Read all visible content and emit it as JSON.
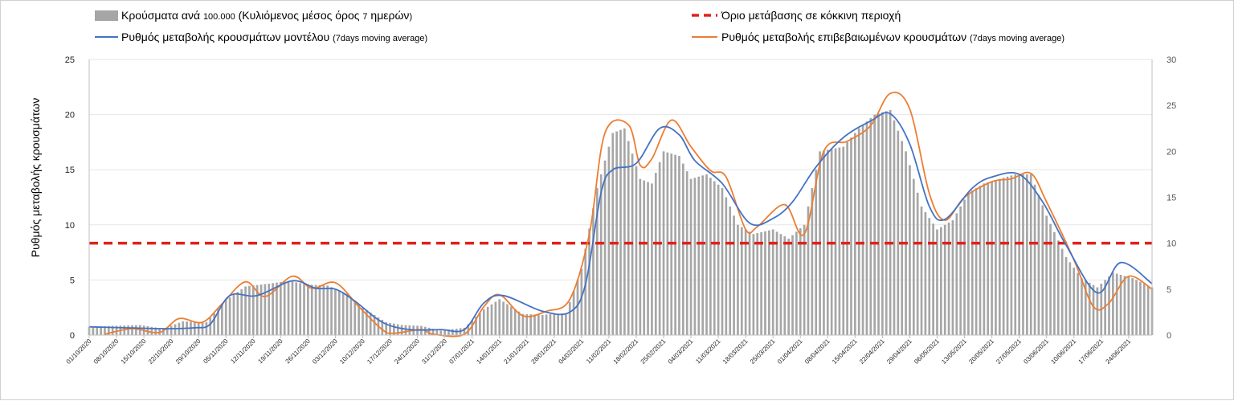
{
  "chart_data": {
    "type": "bar+line",
    "ylabel": "Ρυθμός μεταβολής κρουσμάτων",
    "ylim": [
      0,
      25
    ],
    "y_ticks": [
      "0",
      "5",
      "10",
      "15",
      "20",
      "25"
    ],
    "y2lim": [
      0,
      30
    ],
    "y2_ticks": [
      "0",
      "5",
      "10",
      "15",
      "20",
      "25",
      "30"
    ],
    "x_start": "2020-10-01",
    "x_end": "2021-06-30",
    "x_ticks": [
      "01/10/2020",
      "08/10/2020",
      "15/10/2020",
      "22/10/2020",
      "29/10/2020",
      "05/11/2020",
      "12/11/2020",
      "19/11/2020",
      "26/11/2020",
      "03/12/2020",
      "10/12/2020",
      "17/12/2020",
      "24/12/2020",
      "31/12/2020",
      "07/01/2021",
      "14/01/2021",
      "21/01/2021",
      "28/01/2021",
      "04/02/2021",
      "11/02/2021",
      "18/02/2021",
      "25/02/2021",
      "04/03/2021",
      "11/03/2021",
      "18/03/2021",
      "25/03/2021",
      "01/04/2021",
      "08/04/2021",
      "15/04/2021",
      "22/04/2021",
      "29/04/2021",
      "06/05/2021",
      "13/05/2021",
      "20/05/2021",
      "27/05/2021",
      "03/06/2021",
      "10/06/2021",
      "17/06/2021",
      "24/06/2021"
    ],
    "legend": {
      "bars": {
        "label": "Κρούσματα ανά ",
        "small1": "100.000",
        "label2": " (Κυλιόμενος μέσος όρος ",
        "small2": "7",
        "label3": " ημερών",
        "small3": ")"
      },
      "threshold": {
        "label": "Όριο μετάβασης σε κόκκινη περιοχή"
      },
      "model": {
        "label": "Ρυθμός μεταβολής κρουσμάτων μοντέλου ",
        "small": "(7days moving average)"
      },
      "confirmed": {
        "label": "Ρυθμός μεταβολής επιβεβαιωμένων κρουσμάτων ",
        "small": "(7days moving average)"
      }
    },
    "threshold_value": 10,
    "colors": {
      "bars": "#a6a6a6",
      "threshold": "#e0211a",
      "model": "#4472c4",
      "confirmed": "#ed7d31",
      "grid": "#e6e6e6"
    },
    "series": [
      {
        "name": "Κρούσματα ανά 100.000 (Κυλιόμενος μέσος όρος 7 ημερών)",
        "axis": "right",
        "points": [
          [
            "2020-10-01",
            0.9
          ],
          [
            "2020-10-07",
            1
          ],
          [
            "2020-10-14",
            1.1
          ],
          [
            "2020-10-20",
            0.7
          ],
          [
            "2020-10-25",
            1.5
          ],
          [
            "2020-10-31",
            1.4
          ],
          [
            "2020-11-05",
            3.8
          ],
          [
            "2020-11-10",
            5.3
          ],
          [
            "2020-11-16",
            5.6
          ],
          [
            "2020-11-21",
            5.9
          ],
          [
            "2020-11-26",
            5.5
          ],
          [
            "2020-12-01",
            5.4
          ],
          [
            "2020-12-06",
            4.5
          ],
          [
            "2020-12-10",
            3
          ],
          [
            "2020-12-16",
            1.4
          ],
          [
            "2020-12-20",
            1.1
          ],
          [
            "2020-12-25",
            1
          ],
          [
            "2020-12-30",
            0.5
          ],
          [
            "2021-01-05",
            0.8
          ],
          [
            "2021-01-10",
            2.8
          ],
          [
            "2021-01-14",
            3.9
          ],
          [
            "2021-01-20",
            2.3
          ],
          [
            "2021-01-25",
            2.2
          ],
          [
            "2021-01-31",
            2.4
          ],
          [
            "2021-02-04",
            7.2
          ],
          [
            "2021-02-08",
            16
          ],
          [
            "2021-02-12",
            22
          ],
          [
            "2021-02-15",
            22.5
          ],
          [
            "2021-02-19",
            17
          ],
          [
            "2021-02-22",
            16.5
          ],
          [
            "2021-02-25",
            20
          ],
          [
            "2021-03-01",
            19.5
          ],
          [
            "2021-03-04",
            17
          ],
          [
            "2021-03-08",
            17.5
          ],
          [
            "2021-03-12",
            16
          ],
          [
            "2021-03-16",
            12
          ],
          [
            "2021-03-20",
            11
          ],
          [
            "2021-03-25",
            11.5
          ],
          [
            "2021-03-29",
            10.5
          ],
          [
            "2021-04-02",
            12
          ],
          [
            "2021-04-06",
            20
          ],
          [
            "2021-04-12",
            20.5
          ],
          [
            "2021-04-16",
            22.5
          ],
          [
            "2021-04-20",
            24
          ],
          [
            "2021-04-24",
            24.5
          ],
          [
            "2021-04-28",
            20
          ],
          [
            "2021-05-02",
            14
          ],
          [
            "2021-05-06",
            11.5
          ],
          [
            "2021-05-10",
            12.5
          ],
          [
            "2021-05-14",
            15.5
          ],
          [
            "2021-05-18",
            16.5
          ],
          [
            "2021-05-22",
            17
          ],
          [
            "2021-05-26",
            17.5
          ],
          [
            "2021-05-30",
            17.5
          ],
          [
            "2021-06-03",
            13
          ],
          [
            "2021-06-08",
            8.5
          ],
          [
            "2021-06-12",
            6.2
          ],
          [
            "2021-06-16",
            5.2
          ],
          [
            "2021-06-20",
            6.8
          ],
          [
            "2021-06-25",
            6.2
          ],
          [
            "2021-06-30",
            5.2
          ]
        ]
      },
      {
        "name": "Ρυθμός μεταβολής κρουσμάτων μοντέλου",
        "axis": "right",
        "points": [
          [
            "2020-10-01",
            0.9
          ],
          [
            "2020-10-10",
            0.8
          ],
          [
            "2020-10-20",
            0.7
          ],
          [
            "2020-10-28",
            0.8
          ],
          [
            "2020-11-01",
            1.2
          ],
          [
            "2020-11-06",
            4.3
          ],
          [
            "2020-11-13",
            4.3
          ],
          [
            "2020-11-22",
            5.9
          ],
          [
            "2020-11-28",
            5.1
          ],
          [
            "2020-12-03",
            5
          ],
          [
            "2020-12-08",
            3.7
          ],
          [
            "2020-12-15",
            1.4
          ],
          [
            "2020-12-22",
            0.6
          ],
          [
            "2020-12-30",
            0.6
          ],
          [
            "2021-01-05",
            0.6
          ],
          [
            "2021-01-10",
            3.5
          ],
          [
            "2021-01-15",
            4.3
          ],
          [
            "2021-01-25",
            2.6
          ],
          [
            "2021-02-01",
            2.5
          ],
          [
            "2021-02-05",
            5.5
          ],
          [
            "2021-02-09",
            15.5
          ],
          [
            "2021-02-12",
            18
          ],
          [
            "2021-02-18",
            18.7
          ],
          [
            "2021-02-24",
            22.5
          ],
          [
            "2021-03-01",
            21.8
          ],
          [
            "2021-03-05",
            19
          ],
          [
            "2021-03-12",
            16.5
          ],
          [
            "2021-03-19",
            12.2
          ],
          [
            "2021-03-25",
            12.7
          ],
          [
            "2021-03-30",
            14.5
          ],
          [
            "2021-04-05",
            18.3
          ],
          [
            "2021-04-12",
            21.5
          ],
          [
            "2021-04-19",
            23.3
          ],
          [
            "2021-04-24",
            24.1
          ],
          [
            "2021-04-29",
            20.8
          ],
          [
            "2021-05-04",
            14
          ],
          [
            "2021-05-08",
            12.6
          ],
          [
            "2021-05-15",
            16
          ],
          [
            "2021-05-20",
            17.2
          ],
          [
            "2021-05-27",
            17.5
          ],
          [
            "2021-06-02",
            14.5
          ],
          [
            "2021-06-08",
            9.8
          ],
          [
            "2021-06-16",
            4.6
          ],
          [
            "2021-06-22",
            7.9
          ],
          [
            "2021-06-30",
            5.6
          ]
        ]
      },
      {
        "name": "Ρυθμός μεταβολής επιβεβαιωμένων κρουσμάτων",
        "axis": "right",
        "points": [
          [
            "2020-10-05",
            0.1
          ],
          [
            "2020-10-12",
            0.7
          ],
          [
            "2020-10-19",
            0.3
          ],
          [
            "2020-10-24",
            1.8
          ],
          [
            "2020-10-30",
            1.4
          ],
          [
            "2020-11-04",
            3.4
          ],
          [
            "2020-11-10",
            5.8
          ],
          [
            "2020-11-15",
            4.2
          ],
          [
            "2020-11-22",
            6.4
          ],
          [
            "2020-11-27",
            5.1
          ],
          [
            "2020-12-03",
            5.7
          ],
          [
            "2020-12-09",
            3.1
          ],
          [
            "2020-12-15",
            0.6
          ],
          [
            "2020-12-18",
            0.2
          ],
          [
            "2020-12-25",
            0.6
          ],
          [
            "2020-12-28",
            0.1
          ],
          [
            "2021-01-05",
            0.1
          ],
          [
            "2021-01-10",
            3.1
          ],
          [
            "2021-01-14",
            4.4
          ],
          [
            "2021-01-20",
            2.1
          ],
          [
            "2021-01-26",
            2.6
          ],
          [
            "2021-02-01",
            3.9
          ],
          [
            "2021-02-06",
            11
          ],
          [
            "2021-02-10",
            22
          ],
          [
            "2021-02-16",
            22.9
          ],
          [
            "2021-02-19",
            18.5
          ],
          [
            "2021-02-22",
            19.2
          ],
          [
            "2021-02-27",
            23.4
          ],
          [
            "2021-03-04",
            20.5
          ],
          [
            "2021-03-09",
            17.9
          ],
          [
            "2021-03-13",
            17.2
          ],
          [
            "2021-03-18",
            11.5
          ],
          [
            "2021-03-21",
            11.8
          ],
          [
            "2021-03-28",
            14.2
          ],
          [
            "2021-04-02",
            11
          ],
          [
            "2021-04-07",
            20
          ],
          [
            "2021-04-13",
            21.1
          ],
          [
            "2021-04-19",
            22.8
          ],
          [
            "2021-04-24",
            26.3
          ],
          [
            "2021-04-29",
            24.6
          ],
          [
            "2021-05-04",
            15.4
          ],
          [
            "2021-05-08",
            12.5
          ],
          [
            "2021-05-13",
            15
          ],
          [
            "2021-05-20",
            16.7
          ],
          [
            "2021-05-25",
            17
          ],
          [
            "2021-05-30",
            17.6
          ],
          [
            "2021-06-03",
            14.5
          ],
          [
            "2021-06-10",
            8.2
          ],
          [
            "2021-06-15",
            3.1
          ],
          [
            "2021-06-19",
            3.5
          ],
          [
            "2021-06-24",
            6.4
          ],
          [
            "2021-06-30",
            5
          ]
        ]
      }
    ]
  }
}
